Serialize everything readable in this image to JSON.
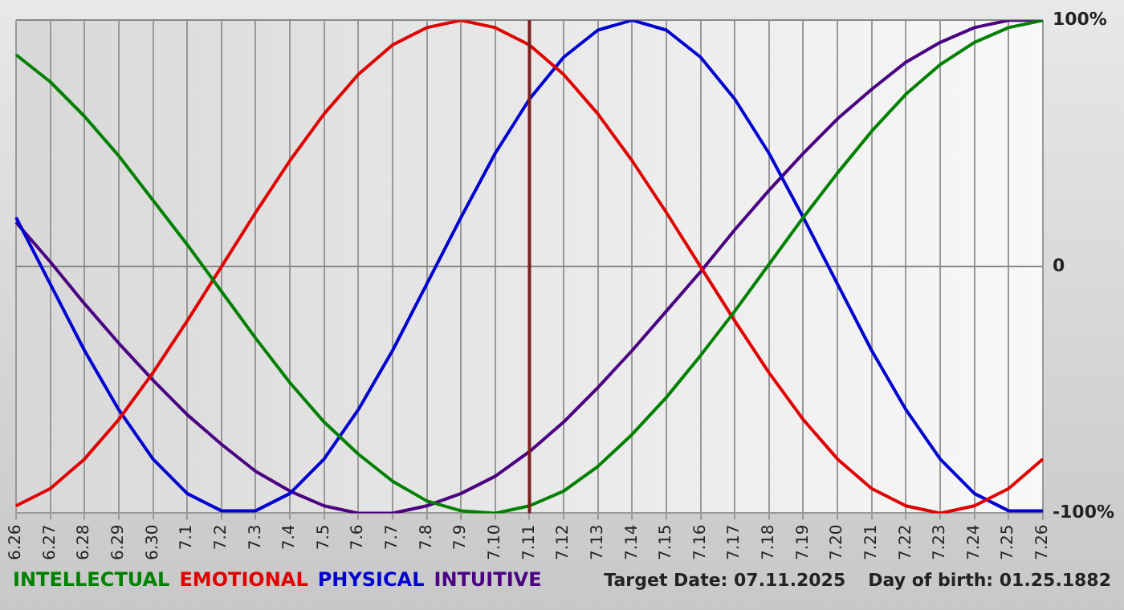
{
  "chart_data": {
    "type": "line",
    "categories": [
      "6.26",
      "6.27",
      "6.28",
      "6.29",
      "6.30",
      "7.1",
      "7.2",
      "7.3",
      "7.4",
      "7.5",
      "7.6",
      "7.7",
      "7.8",
      "7.9",
      "7.10",
      "7.11",
      "7.12",
      "7.13",
      "7.14",
      "7.15",
      "7.16",
      "7.17",
      "7.18",
      "7.19",
      "7.20",
      "7.21",
      "7.22",
      "7.23",
      "7.24",
      "7.25",
      "7.26"
    ],
    "series": [
      {
        "name": "INTELLECTUAL",
        "color": "#008000",
        "values": [
          86,
          75,
          61,
          45,
          27,
          9,
          -10,
          -29,
          -47,
          -63,
          -76,
          -87,
          -95,
          -99,
          -100,
          -97,
          -91,
          -81,
          -68,
          -53,
          -36,
          -18,
          1,
          20,
          38,
          55,
          70,
          82,
          91,
          97,
          100
        ]
      },
      {
        "name": "EMOTIONAL",
        "color": "#e00000",
        "values": [
          -97,
          -90,
          -78,
          -62,
          -43,
          -22,
          0,
          22,
          43,
          62,
          78,
          90,
          97,
          100,
          97,
          90,
          78,
          62,
          43,
          22,
          0,
          -22,
          -43,
          -62,
          -78,
          -90,
          -97,
          -100,
          -97,
          -90,
          -78
        ]
      },
      {
        "name": "PHYSICAL",
        "color": "#0000d0",
        "values": [
          20,
          -7,
          -34,
          -58,
          -78,
          -92,
          -99,
          -99,
          -92,
          -78,
          -58,
          -34,
          -7,
          20,
          46,
          68,
          85,
          96,
          100,
          96,
          85,
          68,
          46,
          20,
          -7,
          -34,
          -58,
          -78,
          -92,
          -99,
          -99
        ]
      },
      {
        "name": "INTUITIVE",
        "color": "#4b0082",
        "values": [
          18,
          2,
          -15,
          -31,
          -46,
          -60,
          -72,
          -83,
          -91,
          -97,
          -100,
          -100,
          -97,
          -92,
          -85,
          -75,
          -63,
          -49,
          -34,
          -18,
          -2,
          15,
          31,
          46,
          60,
          72,
          83,
          91,
          97,
          100,
          100
        ]
      }
    ],
    "ylim": [
      -100,
      100
    ],
    "yticks": [
      {
        "value": -100,
        "label": "-100%"
      },
      0,
      {
        "value": 100,
        "label": "100%"
      }
    ],
    "grid": true,
    "legend": "bottom left",
    "marker": "none",
    "line_style": "solid",
    "ref_lines": [
      {
        "axis": "x",
        "value": "7.11",
        "color": "#7a1f1f"
      }
    ],
    "annotations": [
      "Target Date: 07.11.2025",
      "Day of birth: 01.25.1882"
    ]
  }
}
